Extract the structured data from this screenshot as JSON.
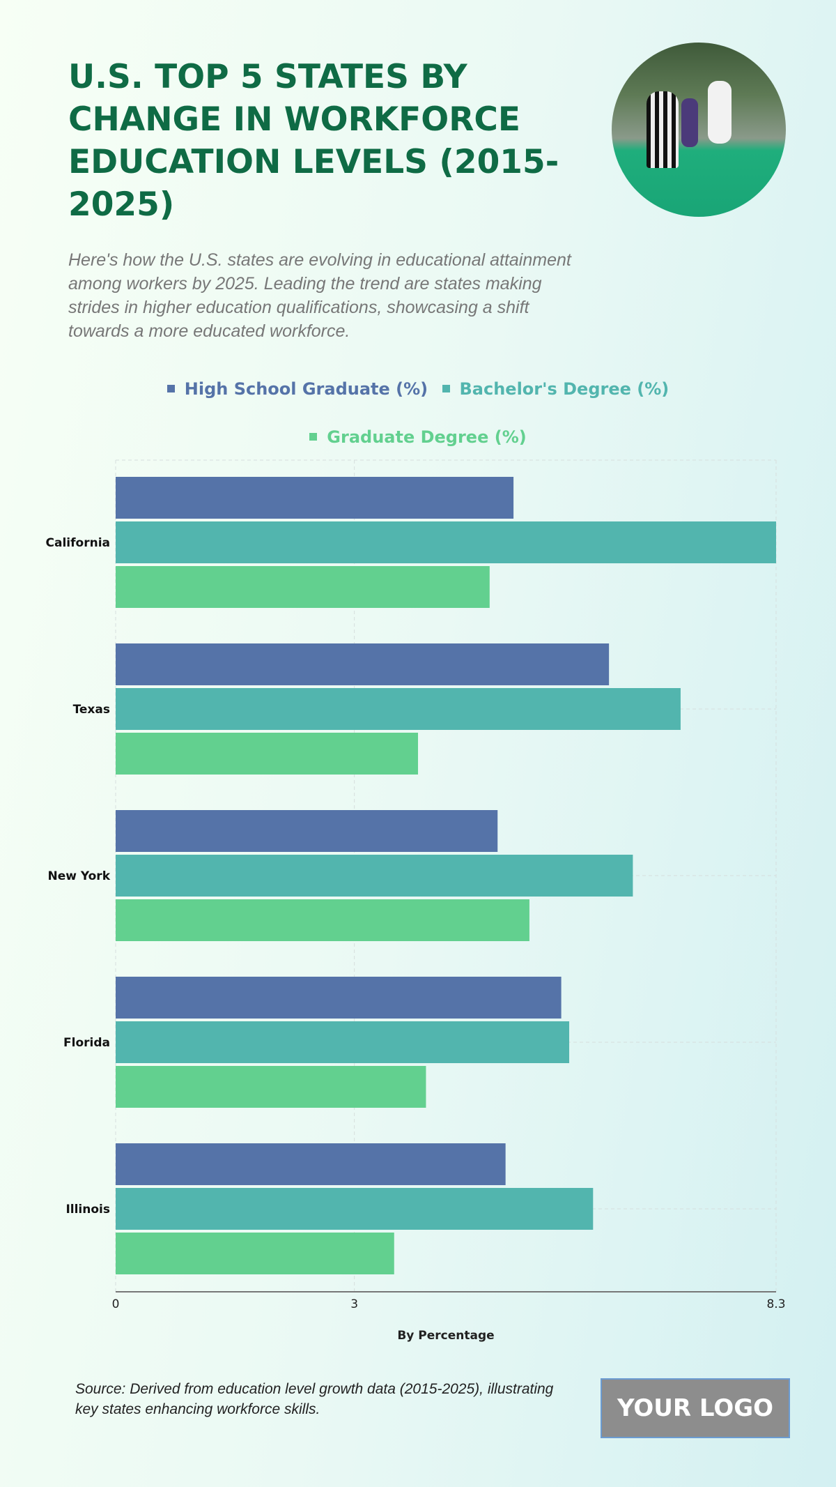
{
  "header": {
    "title": "U.S. TOP 5 STATES BY CHANGE IN WORKFORCE EDUCATION LEVELS (2015-2025)",
    "subtitle": "Here's how the U.S. states are evolving in educational attainment among workers by 2025. Leading the trend are states making strides in higher education qualifications, showcasing a shift towards a more educated workforce."
  },
  "footer": {
    "source": "Source: Derived from education level growth data (2015-2025), illustrating key states enhancing workforce skills.",
    "logo": "YOUR LOGO"
  },
  "chart_data": {
    "type": "bar",
    "orientation": "horizontal",
    "categories": [
      "California",
      "Texas",
      "New York",
      "Florida",
      "Illinois"
    ],
    "series": [
      {
        "name": "High School Graduate (%)",
        "color": "#5573a8",
        "values": [
          5.0,
          6.2,
          4.8,
          5.6,
          4.9
        ]
      },
      {
        "name": "Bachelor's Degree (%)",
        "color": "#52b5ae",
        "values": [
          8.3,
          7.1,
          6.5,
          5.7,
          6.0
        ]
      },
      {
        "name": "Graduate Degree (%)",
        "color": "#62d08f",
        "values": [
          4.7,
          3.8,
          5.2,
          3.9,
          3.5
        ]
      }
    ],
    "xlabel": "By Percentage",
    "ylabel": "",
    "xlim": [
      0,
      8.3
    ],
    "ticks": [
      "0",
      "3",
      "8.3"
    ],
    "tick_values": [
      0,
      3,
      8.3
    ],
    "grid": true,
    "legend": "top-center"
  }
}
